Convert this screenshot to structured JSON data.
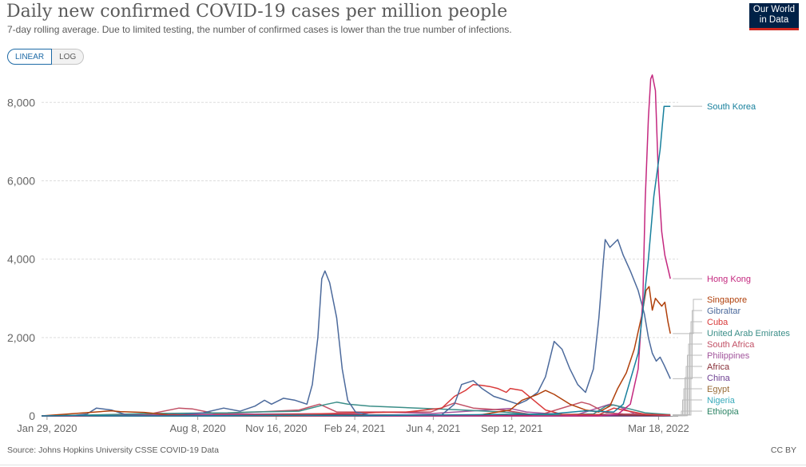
{
  "header": {
    "title": "Daily new confirmed COVID-19 cases per million people",
    "subtitle": "7-day rolling average. Due to limited testing, the number of confirmed cases is lower than the true number of infections.",
    "logo_line1": "Our World",
    "logo_line2": "in Data"
  },
  "scale_toggle": {
    "linear_label": "LINEAR",
    "log_label": "LOG",
    "selected": "LINEAR"
  },
  "footer": {
    "source": "Source: Johns Hopkins University CSSE COVID-19 Data",
    "license": "CC BY"
  },
  "chart_data": {
    "type": "line",
    "title": "Daily new confirmed COVID-19 cases per million people",
    "x_type": "date",
    "xlim": [
      "2020-01-22",
      "2022-04-12"
    ],
    "ylim": [
      0,
      8800
    ],
    "y_ticks": [
      0,
      2000,
      4000,
      6000,
      8000
    ],
    "y_tick_labels": [
      "0",
      "2,000",
      "4,000",
      "6,000",
      "8,000"
    ],
    "x_ticks": [
      "2020-01-29",
      "2020-08-08",
      "2020-11-16",
      "2021-02-24",
      "2021-06-04",
      "2021-09-12",
      "2022-03-18"
    ],
    "x_tick_labels": [
      "Jan 29, 2020",
      "Aug 8, 2020",
      "Nov 16, 2020",
      "Feb 24, 2021",
      "Jun 4, 2021",
      "Sep 12, 2021",
      "Mar 18, 2022"
    ],
    "grid": "horizontal dashed",
    "legend": "right, labels at line ends",
    "series": [
      {
        "name": "South Korea",
        "color": "#18809d",
        "points": [
          [
            "2020-01-22",
            0
          ],
          [
            "2020-03-01",
            10
          ],
          [
            "2020-06-01",
            1
          ],
          [
            "2020-09-01",
            4
          ],
          [
            "2020-12-25",
            18
          ],
          [
            "2021-03-01",
            8
          ],
          [
            "2021-07-25",
            30
          ],
          [
            "2021-11-01",
            50
          ],
          [
            "2021-12-15",
            130
          ],
          [
            "2022-01-20",
            100
          ],
          [
            "2022-02-01",
            300
          ],
          [
            "2022-02-20",
            1600
          ],
          [
            "2022-03-05",
            4000
          ],
          [
            "2022-03-12",
            5600
          ],
          [
            "2022-03-20",
            6800
          ],
          [
            "2022-03-25",
            7900
          ],
          [
            "2022-04-02",
            7900
          ]
        ]
      },
      {
        "name": "Hong Kong",
        "color": "#c4287f",
        "points": [
          [
            "2020-01-22",
            0
          ],
          [
            "2020-07-28",
            15
          ],
          [
            "2020-12-01",
            12
          ],
          [
            "2021-03-01",
            2
          ],
          [
            "2021-12-31",
            1
          ],
          [
            "2022-01-25",
            40
          ],
          [
            "2022-02-10",
            300
          ],
          [
            "2022-02-20",
            1200
          ],
          [
            "2022-02-26",
            3000
          ],
          [
            "2022-03-01",
            5500
          ],
          [
            "2022-03-05",
            7600
          ],
          [
            "2022-03-08",
            8600
          ],
          [
            "2022-03-10",
            8700
          ],
          [
            "2022-03-14",
            8300
          ],
          [
            "2022-03-18",
            6000
          ],
          [
            "2022-03-22",
            4700
          ],
          [
            "2022-03-26",
            4100
          ],
          [
            "2022-04-02",
            3500
          ]
        ]
      },
      {
        "name": "Singapore",
        "color": "#b0400b",
        "points": [
          [
            "2020-01-22",
            0
          ],
          [
            "2020-04-20",
            130
          ],
          [
            "2020-05-01",
            110
          ],
          [
            "2020-06-01",
            90
          ],
          [
            "2020-07-01",
            30
          ],
          [
            "2020-09-01",
            8
          ],
          [
            "2021-03-01",
            2
          ],
          [
            "2021-08-01",
            20
          ],
          [
            "2021-09-10",
            150
          ],
          [
            "2021-09-25",
            400
          ],
          [
            "2021-10-15",
            550
          ],
          [
            "2021-10-25",
            650
          ],
          [
            "2021-11-05",
            550
          ],
          [
            "2021-11-25",
            300
          ],
          [
            "2021-12-15",
            150
          ],
          [
            "2022-01-01",
            100
          ],
          [
            "2022-01-15",
            250
          ],
          [
            "2022-01-25",
            700
          ],
          [
            "2022-02-05",
            1100
          ],
          [
            "2022-02-15",
            1700
          ],
          [
            "2022-02-25",
            2600
          ],
          [
            "2022-03-02",
            3200
          ],
          [
            "2022-03-06",
            3300
          ],
          [
            "2022-03-10",
            2700
          ],
          [
            "2022-03-14",
            3000
          ],
          [
            "2022-03-18",
            2900
          ],
          [
            "2022-03-22",
            2800
          ],
          [
            "2022-03-26",
            2900
          ],
          [
            "2022-03-30",
            2400
          ],
          [
            "2022-04-02",
            2100
          ]
        ]
      },
      {
        "name": "Gibraltar",
        "color": "#4c6a9c",
        "points": [
          [
            "2020-01-22",
            0
          ],
          [
            "2020-02-28",
            0
          ],
          [
            "2020-03-20",
            50
          ],
          [
            "2020-04-01",
            200
          ],
          [
            "2020-04-20",
            150
          ],
          [
            "2020-05-10",
            20
          ],
          [
            "2020-07-01",
            10
          ],
          [
            "2020-08-15",
            80
          ],
          [
            "2020-09-10",
            200
          ],
          [
            "2020-10-01",
            120
          ],
          [
            "2020-10-20",
            250
          ],
          [
            "2020-11-01",
            400
          ],
          [
            "2020-11-10",
            300
          ],
          [
            "2020-11-25",
            450
          ],
          [
            "2020-12-10",
            400
          ],
          [
            "2020-12-25",
            300
          ],
          [
            "2021-01-01",
            800
          ],
          [
            "2021-01-08",
            2000
          ],
          [
            "2021-01-13",
            3500
          ],
          [
            "2021-01-17",
            3700
          ],
          [
            "2021-01-23",
            3400
          ],
          [
            "2021-02-01",
            2500
          ],
          [
            "2021-02-08",
            1200
          ],
          [
            "2021-02-15",
            400
          ],
          [
            "2021-02-25",
            100
          ],
          [
            "2021-03-15",
            20
          ],
          [
            "2021-06-15",
            30
          ],
          [
            "2021-07-01",
            300
          ],
          [
            "2021-07-10",
            800
          ],
          [
            "2021-07-25",
            900
          ],
          [
            "2021-08-05",
            700
          ],
          [
            "2021-08-20",
            500
          ],
          [
            "2021-09-05",
            400
          ],
          [
            "2021-09-20",
            300
          ],
          [
            "2021-10-01",
            400
          ],
          [
            "2021-10-15",
            600
          ],
          [
            "2021-10-25",
            1000
          ],
          [
            "2021-11-05",
            1900
          ],
          [
            "2021-11-15",
            1700
          ],
          [
            "2021-11-25",
            1200
          ],
          [
            "2021-12-05",
            800
          ],
          [
            "2021-12-15",
            600
          ],
          [
            "2021-12-25",
            1200
          ],
          [
            "2022-01-01",
            2500
          ],
          [
            "2022-01-06",
            3800
          ],
          [
            "2022-01-09",
            4500
          ],
          [
            "2022-01-15",
            4300
          ],
          [
            "2022-01-20",
            4400
          ],
          [
            "2022-01-25",
            4500
          ],
          [
            "2022-02-01",
            4100
          ],
          [
            "2022-02-10",
            3700
          ],
          [
            "2022-02-20",
            3200
          ],
          [
            "2022-02-28",
            2600
          ],
          [
            "2022-03-05",
            2000
          ],
          [
            "2022-03-10",
            1600
          ],
          [
            "2022-03-15",
            1400
          ],
          [
            "2022-03-20",
            1500
          ],
          [
            "2022-03-25",
            1300
          ],
          [
            "2022-04-02",
            950
          ]
        ]
      },
      {
        "name": "Cuba",
        "color": "#d93a3a",
        "points": [
          [
            "2020-01-22",
            0
          ],
          [
            "2020-08-01",
            5
          ],
          [
            "2021-01-01",
            50
          ],
          [
            "2021-03-01",
            80
          ],
          [
            "2021-05-01",
            100
          ],
          [
            "2021-06-15",
            200
          ],
          [
            "2021-07-01",
            500
          ],
          [
            "2021-07-15",
            650
          ],
          [
            "2021-07-25",
            800
          ],
          [
            "2021-08-05",
            780
          ],
          [
            "2021-08-15",
            750
          ],
          [
            "2021-08-25",
            700
          ],
          [
            "2021-09-05",
            600
          ],
          [
            "2021-09-10",
            700
          ],
          [
            "2021-09-25",
            650
          ],
          [
            "2021-10-10",
            400
          ],
          [
            "2021-10-25",
            150
          ],
          [
            "2021-11-15",
            40
          ],
          [
            "2022-01-01",
            30
          ],
          [
            "2022-01-20",
            200
          ],
          [
            "2022-02-01",
            150
          ],
          [
            "2022-03-01",
            40
          ],
          [
            "2022-04-02",
            20
          ]
        ]
      },
      {
        "name": "United Arab Emirates",
        "color": "#3b8e88",
        "points": [
          [
            "2020-01-22",
            0
          ],
          [
            "2020-05-01",
            40
          ],
          [
            "2020-06-01",
            60
          ],
          [
            "2020-09-15",
            80
          ],
          [
            "2020-10-15",
            100
          ],
          [
            "2020-12-15",
            120
          ],
          [
            "2021-01-15",
            280
          ],
          [
            "2021-02-01",
            350
          ],
          [
            "2021-02-15",
            300
          ],
          [
            "2021-03-15",
            250
          ],
          [
            "2021-05-15",
            200
          ],
          [
            "2021-07-01",
            160
          ],
          [
            "2021-09-01",
            100
          ],
          [
            "2021-10-15",
            20
          ],
          [
            "2021-12-25",
            50
          ],
          [
            "2022-01-10",
            250
          ],
          [
            "2022-01-20",
            280
          ],
          [
            "2022-02-05",
            200
          ],
          [
            "2022-03-01",
            80
          ],
          [
            "2022-04-02",
            30
          ]
        ]
      },
      {
        "name": "South Africa",
        "color": "#c15065",
        "points": [
          [
            "2020-01-22",
            0
          ],
          [
            "2020-06-01",
            20
          ],
          [
            "2020-07-15",
            200
          ],
          [
            "2020-08-01",
            180
          ],
          [
            "2020-09-01",
            50
          ],
          [
            "2020-12-15",
            150
          ],
          [
            "2021-01-10",
            300
          ],
          [
            "2021-02-01",
            100
          ],
          [
            "2021-06-01",
            100
          ],
          [
            "2021-07-01",
            330
          ],
          [
            "2021-07-25",
            200
          ],
          [
            "2021-09-01",
            150
          ],
          [
            "2021-10-15",
            10
          ],
          [
            "2021-12-10",
            350
          ],
          [
            "2021-12-20",
            300
          ],
          [
            "2022-01-10",
            80
          ],
          [
            "2022-02-01",
            50
          ],
          [
            "2022-04-02",
            30
          ]
        ]
      },
      {
        "name": "Philippines",
        "color": "#a2559c",
        "points": [
          [
            "2020-01-22",
            0
          ],
          [
            "2020-08-01",
            40
          ],
          [
            "2021-03-01",
            60
          ],
          [
            "2021-04-01",
            100
          ],
          [
            "2021-06-01",
            60
          ],
          [
            "2021-09-10",
            190
          ],
          [
            "2021-10-01",
            100
          ],
          [
            "2021-12-01",
            10
          ],
          [
            "2022-01-15",
            300
          ],
          [
            "2022-01-25",
            250
          ],
          [
            "2022-02-15",
            60
          ],
          [
            "2022-04-02",
            5
          ]
        ]
      },
      {
        "name": "Africa",
        "color": "#883039",
        "points": [
          [
            "2020-01-22",
            0
          ],
          [
            "2020-07-15",
            10
          ],
          [
            "2021-01-15",
            25
          ],
          [
            "2021-07-15",
            25
          ],
          [
            "2022-01-05",
            30
          ],
          [
            "2022-04-02",
            5
          ]
        ]
      },
      {
        "name": "China",
        "color": "#6d3e91",
        "points": [
          [
            "2020-01-22",
            0
          ],
          [
            "2020-02-10",
            2
          ],
          [
            "2020-04-01",
            0
          ],
          [
            "2022-03-20",
            3
          ],
          [
            "2022-04-02",
            5
          ]
        ]
      },
      {
        "name": "Egypt",
        "color": "#996d39",
        "points": [
          [
            "2020-01-22",
            0
          ],
          [
            "2020-06-15",
            10
          ],
          [
            "2021-01-01",
            8
          ],
          [
            "2021-11-01",
            10
          ],
          [
            "2022-01-25",
            20
          ],
          [
            "2022-04-02",
            5
          ]
        ]
      },
      {
        "name": "Nigeria",
        "color": "#38aaba",
        "points": [
          [
            "2020-01-22",
            0
          ],
          [
            "2021-01-20",
            5
          ],
          [
            "2021-12-20",
            15
          ],
          [
            "2022-04-02",
            1
          ]
        ]
      },
      {
        "name": "Ethiopia",
        "color": "#2c8465",
        "points": [
          [
            "2020-01-22",
            0
          ],
          [
            "2020-09-01",
            10
          ],
          [
            "2021-03-20",
            20
          ],
          [
            "2022-01-10",
            30
          ],
          [
            "2022-04-02",
            1
          ]
        ]
      }
    ]
  }
}
